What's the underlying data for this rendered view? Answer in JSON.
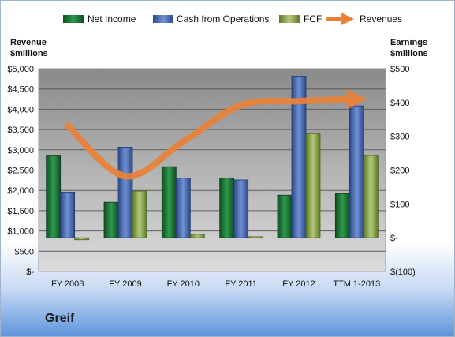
{
  "company": "Greif",
  "colors": {
    "net_income": "#1f7a3a",
    "cash_from_operations": "#4b6fb8",
    "fcf": "#8faa4e",
    "revenues": "#e8823a",
    "plot_top": "#8a8a8a",
    "plot_bottom": "#dcdcdc"
  },
  "chart_data": {
    "type": "bar",
    "categories": [
      "FY 2008",
      "FY 2009",
      "FY 2010",
      "FY 2011",
      "FY 2012",
      "TTM 1-2013"
    ],
    "series": [
      {
        "name": "Net Income",
        "axis": "right",
        "values": [
          242,
          105,
          210,
          177,
          126,
          130
        ]
      },
      {
        "name": "Cash from Operations",
        "axis": "right",
        "values": [
          135,
          268,
          176,
          171,
          478,
          390
        ]
      },
      {
        "name": "FCF",
        "axis": "right",
        "values": [
          -6,
          138,
          10,
          3,
          308,
          243
        ]
      },
      {
        "name": "Revenues",
        "axis": "left",
        "type": "line",
        "values": [
          3600,
          2350,
          3200,
          4100,
          4200,
          4250
        ]
      }
    ],
    "left_axis": {
      "title_line1": "Revenue",
      "title_line2": "$millions",
      "range": [
        0,
        5000
      ],
      "ticks": [
        "$-",
        "$500",
        "$1,000",
        "$1,500",
        "$2,000",
        "$2,500",
        "$3,000",
        "$3,500",
        "$4,000",
        "$4,500",
        "$5,000"
      ]
    },
    "right_axis": {
      "title_line1": "Earnings",
      "title_line2": "$millions",
      "range": [
        -100,
        500
      ],
      "ticks": [
        "$(100)",
        "$-",
        "$100",
        "$200",
        "$300",
        "$400",
        "$500"
      ]
    },
    "legend": [
      "Net Income",
      "Cash from Operations",
      "FCF",
      "Revenues"
    ],
    "legend_position": "top",
    "grid": true
  }
}
